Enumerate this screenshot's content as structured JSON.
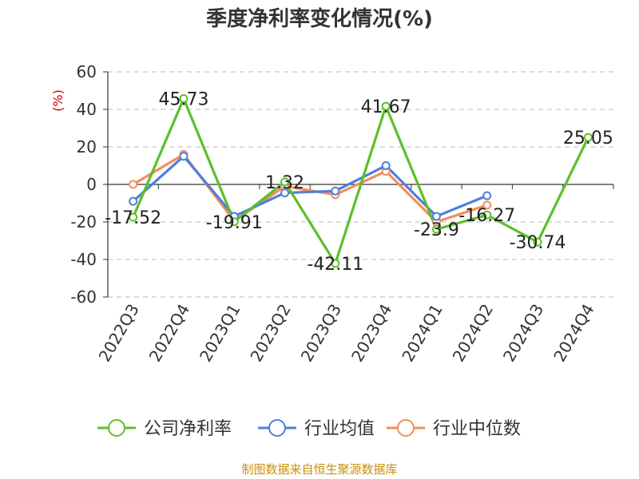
{
  "chart_data": {
    "type": "line",
    "title": "季度净利率变化情况(%)",
    "ylabel": "(%)",
    "xlabel": "",
    "ylim": [
      -60,
      60
    ],
    "yticks": [
      60,
      40,
      20,
      0,
      -20,
      -40,
      -60
    ],
    "categories": [
      "2022Q3",
      "2022Q4",
      "2023Q1",
      "2023Q2",
      "2023Q3",
      "2023Q4",
      "2024Q1",
      "2024Q2",
      "2024Q3",
      "2024Q4"
    ],
    "series": [
      {
        "name": "公司净利率",
        "color": "#5cbf2a",
        "values": [
          -17.52,
          45.73,
          -19.91,
          1.32,
          -42.11,
          41.67,
          -23.9,
          -16.27,
          -30.74,
          25.05
        ],
        "labels": [
          "-17.52",
          "45.73",
          "-19.91",
          "1.32",
          "-42.11",
          "41.67",
          "-23.9",
          "-16.27",
          "-30.74",
          "25.05"
        ]
      },
      {
        "name": "行业均值",
        "color": "#4f7fdd",
        "values": [
          -9,
          15,
          -17,
          -4.5,
          -3.5,
          10,
          -17,
          -6,
          null,
          null
        ]
      },
      {
        "name": "行业中位数",
        "color": "#f58d5b",
        "values": [
          0,
          16,
          -19.5,
          -1,
          -5.5,
          7,
          -20,
          -11,
          null,
          null
        ]
      }
    ],
    "grid": true,
    "legend_position": "bottom",
    "source": "制图数据来自恒生聚源数据库"
  }
}
